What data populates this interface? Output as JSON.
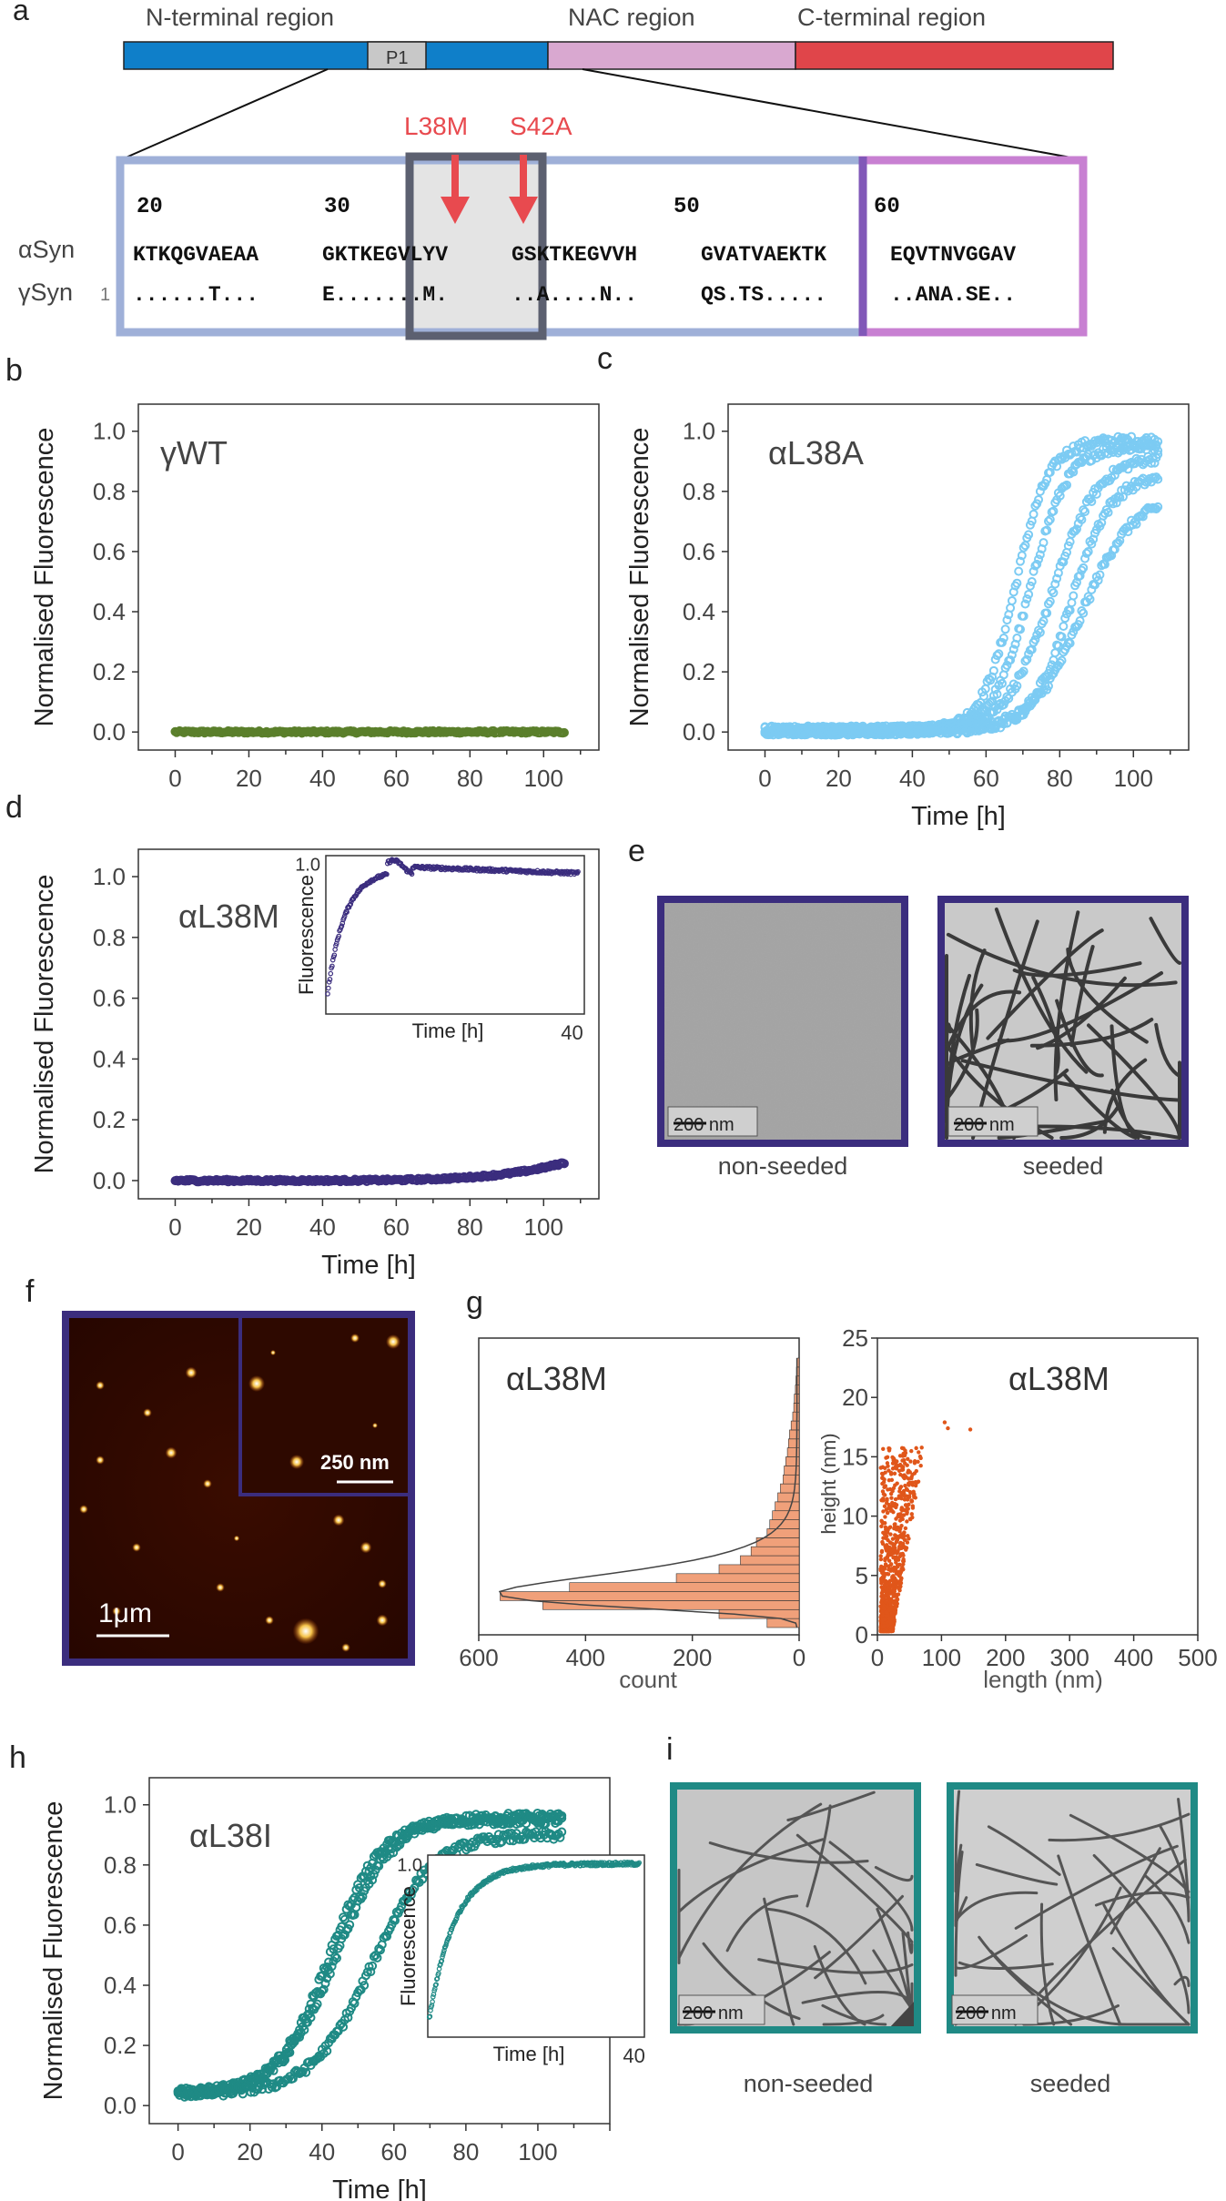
{
  "panel_labels": [
    "a",
    "b",
    "c",
    "d",
    "e",
    "f",
    "g",
    "h",
    "i"
  ],
  "panel_a": {
    "regions": [
      {
        "name": "N-terminal region",
        "color": "#0f7fc9"
      },
      {
        "name": "NAC region",
        "color": "#d9a8d0"
      },
      {
        "name": "C-terminal region",
        "color": "#e0454a"
      }
    ],
    "p1_label": "P1",
    "mutations": [
      "L38M",
      "S42A"
    ],
    "mutation_color": "#e84a4f",
    "position_numbers": [
      "20",
      "30",
      "50",
      "60"
    ],
    "row_labels": [
      "αSyn",
      "γSyn"
    ],
    "gamma_index": "1",
    "alpha_sequence": [
      "KTKQGVAEAA",
      "GKTKEGVLYV",
      "GSKTKEGVVH",
      "GVATVAEKTK",
      "EQVTNVGGAV"
    ],
    "gamma_sequence": [
      "......T...",
      "E.......M.",
      "..A....N..",
      "QS.TS.....",
      "..ANA.SE.."
    ]
  },
  "panel_e": {
    "images": [
      {
        "caption": "non-seeded",
        "scale": "200 nm"
      },
      {
        "caption": "seeded",
        "scale": "200 nm"
      }
    ],
    "border": "#3b2d7e"
  },
  "panel_f": {
    "scale_main": "1μm",
    "scale_inset": "250 nm"
  },
  "panel_i": {
    "images": [
      {
        "caption": "non-seeded",
        "scale": "200 nm"
      },
      {
        "caption": "seeded",
        "scale": "200 nm"
      }
    ],
    "border": "#1f8a85"
  },
  "chart_data": [
    {
      "panel": "b",
      "type": "scatter",
      "title": "γWT",
      "xlabel": "",
      "ylabel": "Normalised Fluorescence",
      "xlim": [
        -10,
        115
      ],
      "ylim": [
        -0.06,
        1.09
      ],
      "xticks": [
        0,
        20,
        40,
        60,
        80,
        100
      ],
      "yticks": [
        "0.0",
        "0.2",
        "0.4",
        "0.6",
        "0.8",
        "1.0"
      ],
      "color": "#5a7f2b",
      "series": [
        {
          "x_range": [
            0,
            106
          ],
          "y": 0.0
        }
      ]
    },
    {
      "panel": "c",
      "type": "scatter",
      "title": "αL38A",
      "xlabel": "Time [h]",
      "ylabel": "Normalised Fluorescence",
      "xlim": [
        -10,
        115
      ],
      "ylim": [
        -0.06,
        1.09
      ],
      "xticks": [
        0,
        20,
        40,
        60,
        80,
        100
      ],
      "yticks": [
        "0.0",
        "0.2",
        "0.4",
        "0.6",
        "0.8",
        "1.0"
      ],
      "color": "#7ccbf3",
      "series": [
        {
          "t_half": 68,
          "k": 0.22,
          "plateau": 0.97
        },
        {
          "t_half": 72,
          "k": 0.2,
          "plateau": 0.95
        },
        {
          "t_half": 78,
          "k": 0.16,
          "plateau": 0.92
        },
        {
          "t_half": 83,
          "k": 0.19,
          "plateau": 0.85
        },
        {
          "t_half": 86,
          "k": 0.15,
          "plateau": 0.78
        }
      ]
    },
    {
      "panel": "d",
      "type": "scatter",
      "title": "αL38M",
      "xlabel": "Time [h]",
      "ylabel": "Normalised Fluorescence",
      "xlim": [
        -10,
        115
      ],
      "ylim": [
        -0.06,
        1.09
      ],
      "xticks": [
        0,
        20,
        40,
        60,
        80,
        100
      ],
      "yticks": [
        "0.0",
        "0.2",
        "0.4",
        "0.6",
        "0.8",
        "1.0"
      ],
      "color": "#3b2d7e",
      "series": [
        {
          "x_range": [
            0,
            106
          ],
          "y_start": 0.0,
          "y_end": 0.06
        }
      ],
      "inset": {
        "xlabel": "Time [h]",
        "ylabel": "Fluorescence",
        "xtick": "40",
        "ytick": "1.0",
        "xlim": [
          0,
          42
        ],
        "ylim": [
          0,
          1.05
        ]
      }
    },
    {
      "panel": "g_histogram",
      "type": "bar",
      "title": "αL38M",
      "xlabel": "count",
      "xticks": [
        600,
        400,
        200,
        0
      ],
      "orientation": "horizontal-reversed",
      "color": "#f0a07a",
      "bins_height_nm": [
        0.5,
        1.0,
        1.5,
        2.0,
        2.5,
        3.0,
        3.5,
        4.0,
        4.5,
        5.0,
        5.5,
        6.0,
        6.5,
        7.0,
        7.5,
        8.0,
        8.5,
        9.0,
        9.5,
        10.0,
        10.5,
        11.0,
        11.5,
        12.0,
        12.5,
        13.0,
        13.5,
        14.0,
        14.5,
        15.0
      ],
      "counts": [
        60,
        150,
        480,
        560,
        430,
        230,
        150,
        110,
        90,
        80,
        60,
        55,
        50,
        45,
        40,
        35,
        30,
        28,
        25,
        22,
        20,
        18,
        15,
        12,
        10,
        9,
        7,
        6,
        5,
        4
      ]
    },
    {
      "panel": "g_scatter",
      "type": "scatter",
      "title": "αL38M",
      "xlabel": "length (nm)",
      "ylabel": "height (nm)",
      "xlim": [
        0,
        500
      ],
      "ylim": [
        0,
        25
      ],
      "xticks": [
        0,
        100,
        200,
        300,
        400,
        500
      ],
      "yticks": [
        0,
        5,
        10,
        15,
        20,
        25
      ],
      "color": "#e0561a",
      "cluster": {
        "length_range": [
          5,
          70
        ],
        "height_range": [
          0.3,
          16
        ]
      },
      "outliers": [
        {
          "length": 105,
          "height": 17.9
        },
        {
          "length": 110,
          "height": 17.4
        },
        {
          "length": 145,
          "height": 17.3
        }
      ]
    },
    {
      "panel": "h",
      "type": "scatter",
      "title": "αL38I",
      "xlabel": "Time [h]",
      "ylabel": "Normalised Fluorescence",
      "xlim": [
        -8,
        120
      ],
      "ylim": [
        -0.06,
        1.09
      ],
      "xticks": [
        0,
        20,
        40,
        60,
        80,
        100
      ],
      "yticks": [
        "0.0",
        "0.2",
        "0.4",
        "0.6",
        "0.8",
        "1.0"
      ],
      "color": "#1f8a85",
      "series": [
        {
          "t_half": 42,
          "k": 0.14,
          "plateau": 0.95,
          "base": 0.04
        },
        {
          "t_half": 44,
          "k": 0.13,
          "plateau": 0.96,
          "base": 0.04
        },
        {
          "t_half": 54,
          "k": 0.12,
          "plateau": 0.9,
          "base": 0.04
        }
      ],
      "inset": {
        "xlabel": "Time [h]",
        "ylabel": "Fluorescence",
        "xtick": "40",
        "ytick": "1.0",
        "xlim": [
          0,
          42
        ],
        "ylim": [
          0,
          1.05
        ]
      }
    }
  ]
}
